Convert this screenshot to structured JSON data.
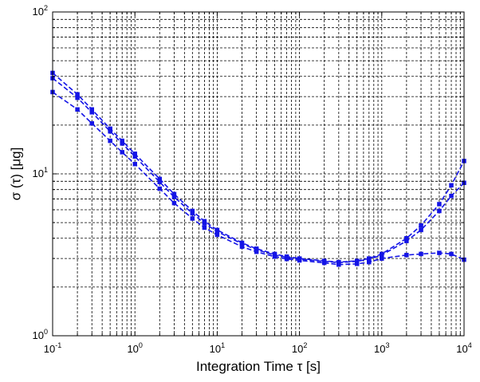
{
  "chart_data": {
    "type": "line",
    "title": "",
    "xlabel": "Integration Time τ [s]",
    "ylabel": "σ (τ) [μg]",
    "xscale": "log",
    "yscale": "log",
    "xlim": [
      0.1,
      10000
    ],
    "ylim": [
      1,
      100
    ],
    "grid": true,
    "x_ticks": [
      {
        "value": 0.1,
        "base": "10",
        "exp": "-1"
      },
      {
        "value": 1,
        "base": "10",
        "exp": "0"
      },
      {
        "value": 10,
        "base": "10",
        "exp": "1"
      },
      {
        "value": 100,
        "base": "10",
        "exp": "2"
      },
      {
        "value": 1000,
        "base": "10",
        "exp": "3"
      },
      {
        "value": 10000,
        "base": "10",
        "exp": "4"
      }
    ],
    "y_ticks": [
      {
        "value": 1,
        "base": "10",
        "exp": "0"
      },
      {
        "value": 10,
        "base": "10",
        "exp": "1"
      },
      {
        "value": 100,
        "base": "10",
        "exp": "2"
      }
    ],
    "line_color": "#1414e6",
    "series": [
      {
        "x": [
          0.1,
          0.2,
          0.3,
          0.5,
          0.7,
          1,
          2,
          3,
          5,
          7,
          10,
          20,
          30,
          50,
          70,
          100,
          200,
          300,
          500,
          700,
          1000,
          2000,
          3000,
          5000,
          7000,
          10000
        ],
        "y": [
          42,
          31,
          25,
          19,
          16,
          13.3,
          9.3,
          7.5,
          5.9,
          5.1,
          4.5,
          3.75,
          3.45,
          3.2,
          3.08,
          3.0,
          2.9,
          2.85,
          2.9,
          3.0,
          3.2,
          4.0,
          4.8,
          6.5,
          8.5,
          12.0
        ]
      },
      {
        "x": [
          0.1,
          0.2,
          0.3,
          0.5,
          0.7,
          1,
          2,
          3,
          5,
          7,
          10,
          20,
          30,
          50,
          70,
          100,
          200,
          300,
          500,
          700,
          1000,
          2000,
          3000,
          5000,
          7000,
          10000
        ],
        "y": [
          39,
          29.5,
          24,
          18.3,
          15.4,
          12.8,
          8.9,
          7.2,
          5.7,
          4.95,
          4.4,
          3.7,
          3.4,
          3.15,
          3.05,
          2.97,
          2.88,
          2.83,
          2.88,
          2.97,
          3.15,
          3.85,
          4.5,
          5.9,
          7.3,
          8.8
        ]
      },
      {
        "x": [
          0.1,
          0.2,
          0.3,
          0.5,
          0.7,
          1,
          2,
          3,
          5,
          7,
          10,
          20,
          30,
          50,
          70,
          100,
          200,
          300,
          500,
          700,
          1000,
          2000,
          3000,
          5000,
          7000,
          10000
        ],
        "y": [
          32,
          25,
          20.5,
          16,
          13.6,
          11.5,
          8.1,
          6.6,
          5.3,
          4.65,
          4.2,
          3.55,
          3.3,
          3.08,
          2.98,
          2.92,
          2.82,
          2.75,
          2.78,
          2.85,
          3.0,
          3.15,
          3.2,
          3.25,
          3.2,
          2.95
        ]
      }
    ]
  }
}
